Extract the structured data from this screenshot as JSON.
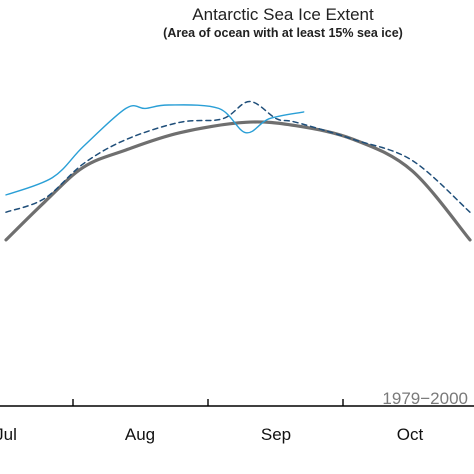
{
  "chart_data": {
    "type": "line",
    "title": "Antarctic Sea Ice Extent",
    "subtitle": "(Area of ocean with at least 15% sea ice)",
    "xlabel": "",
    "ylabel": "",
    "x_ticks": [
      "Jul",
      "Aug",
      "Sep",
      "Oct"
    ],
    "xlim": [
      0,
      120
    ],
    "ylim": [
      0,
      100
    ],
    "grid": false,
    "legend_labels": [
      "1979−2000"
    ],
    "legend_position": "bottom-right",
    "series": [
      {
        "name": "1979−2000",
        "style": "solid",
        "color": "#6f6f6f",
        "x": [
          0,
          10,
          20,
          31,
          45,
          62,
          75,
          90,
          105,
          120
        ],
        "y": [
          48,
          59,
          69,
          74,
          79,
          82,
          81,
          77,
          68,
          48
        ]
      },
      {
        "style": "dashed",
        "color": "#1f4e79",
        "x": [
          0,
          10,
          20,
          31,
          45,
          56,
          63,
          70,
          75,
          90,
          105,
          120
        ],
        "y": [
          56,
          60,
          70,
          77,
          82,
          83,
          88,
          83,
          82,
          77,
          71,
          56
        ]
      },
      {
        "style": "solid",
        "color": "#2a9fd6",
        "x": [
          0,
          12,
          20,
          31,
          36,
          42,
          55,
          62,
          68,
          77
        ],
        "y": [
          61,
          66,
          75,
          86,
          86,
          87,
          86,
          79,
          83,
          85
        ]
      }
    ]
  }
}
